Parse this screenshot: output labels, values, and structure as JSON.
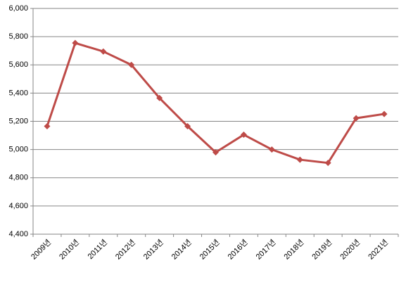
{
  "chart_data": {
    "type": "line",
    "categories": [
      "2009년",
      "2010년",
      "2011년",
      "2012년",
      "2013년",
      "2014년",
      "2015년",
      "2016년",
      "2017년",
      "2018년",
      "2019년",
      "2020년",
      "2021년"
    ],
    "series": [
      {
        "color": "#be4b48",
        "values": [
          5165,
          5755,
          5695,
          5600,
          5365,
          5165,
          4980,
          5105,
          5000,
          4928,
          4905,
          5222,
          5252
        ]
      }
    ],
    "ylim": [
      4400,
      6000
    ],
    "yticks": [
      {
        "value": 4400,
        "label": "4,400"
      },
      {
        "value": 4600,
        "label": "4,600"
      },
      {
        "value": 4800,
        "label": "4,800"
      },
      {
        "value": 5000,
        "label": "5,000"
      },
      {
        "value": 5200,
        "label": "5,200"
      },
      {
        "value": 5400,
        "label": "5,400"
      },
      {
        "value": 5600,
        "label": "5,600"
      },
      {
        "value": 5800,
        "label": "5,800"
      },
      {
        "value": 6000,
        "label": "6,000"
      }
    ],
    "grid": true
  }
}
